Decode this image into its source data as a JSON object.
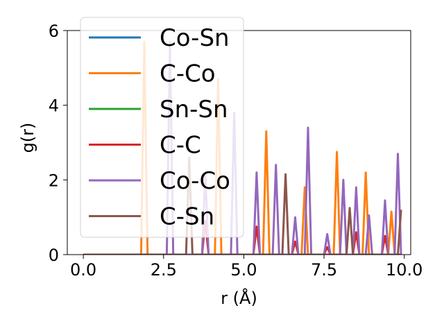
{
  "chart_data": {
    "type": "line",
    "xlabel": "r (Å)",
    "ylabel": "g(r)",
    "xlim": [
      -0.5,
      10.2
    ],
    "ylim": [
      0,
      6.0
    ],
    "xticks": [
      0.0,
      2.5,
      5.0,
      7.5,
      10.0
    ],
    "xtick_labels": [
      "0.0",
      "2.5",
      "5.0",
      "7.5",
      "10.0"
    ],
    "yticks": [
      0,
      2,
      4,
      6
    ],
    "ytick_labels": [
      "0",
      "2",
      "4",
      "6"
    ],
    "legend_position": "upper-left, overlapping plot",
    "series": [
      {
        "name": "Co-Sn",
        "color": "#1f77b4",
        "x": [
          0,
          9.9
        ],
        "y": [
          0,
          0
        ]
      },
      {
        "name": "C-Co",
        "color": "#ff7f0e",
        "x": [
          0,
          1.8,
          1.9,
          2.0,
          4.1,
          4.2,
          4.3,
          5.6,
          5.7,
          5.8,
          6.8,
          6.9,
          7.0,
          7.8,
          7.9,
          8.0,
          8.7,
          8.8,
          8.9,
          9.5,
          9.6,
          9.7,
          9.9
        ],
        "y": [
          0,
          0,
          5.7,
          0,
          0,
          4.7,
          0,
          0,
          3.3,
          0,
          0,
          1.8,
          0,
          0,
          2.75,
          0,
          0,
          2.2,
          0,
          0,
          1.15,
          0,
          0
        ]
      },
      {
        "name": "Sn-Sn",
        "color": "#2ca02c",
        "x": [
          0,
          9.9
        ],
        "y": [
          0,
          0
        ]
      },
      {
        "name": "C-C",
        "color": "#d62728",
        "x": [
          0,
          3.7,
          3.8,
          3.9,
          5.3,
          5.4,
          5.5,
          6.5,
          6.6,
          6.7,
          7.5,
          7.6,
          7.7,
          8.4,
          8.5,
          8.6,
          9.3,
          9.4,
          9.5,
          9.9
        ],
        "y": [
          0,
          0,
          0.9,
          0,
          0,
          0.75,
          0,
          0,
          0.35,
          0,
          0,
          0.2,
          0,
          0,
          0.6,
          0,
          0,
          0.5,
          0,
          0
        ]
      },
      {
        "name": "Co-Co",
        "color": "#9467bd",
        "x": [
          0,
          2.6,
          2.7,
          2.8,
          3.7,
          3.8,
          3.9,
          4.6,
          4.7,
          4.8,
          5.3,
          5.4,
          5.5,
          5.9,
          6.0,
          6.1,
          6.5,
          6.6,
          6.7,
          6.9,
          7.0,
          7.1,
          7.5,
          7.6,
          7.7,
          8.0,
          8.1,
          8.2,
          8.4,
          8.5,
          8.6,
          8.8,
          8.9,
          9.0,
          9.3,
          9.4,
          9.5,
          9.7,
          9.8,
          9.9
        ],
        "y": [
          0,
          0,
          5.7,
          0,
          0,
          2.2,
          0,
          0,
          3.8,
          0,
          0,
          2.2,
          0,
          0,
          2.4,
          0,
          0,
          1.0,
          0,
          0,
          3.4,
          0,
          0,
          0.55,
          0,
          0,
          2.0,
          0,
          0,
          1.8,
          0,
          0,
          1.05,
          0,
          0,
          1.45,
          0,
          0,
          2.7,
          0
        ]
      },
      {
        "name": "C-Sn",
        "color": "#8c564b",
        "x": [
          0,
          3.2,
          3.3,
          3.4,
          6.2,
          6.3,
          6.4,
          8.2,
          8.3,
          8.4,
          9.8,
          9.9
        ],
        "y": [
          0,
          0,
          2.6,
          0,
          0,
          2.15,
          0,
          0,
          1.25,
          0,
          0,
          1.2
        ]
      }
    ]
  }
}
